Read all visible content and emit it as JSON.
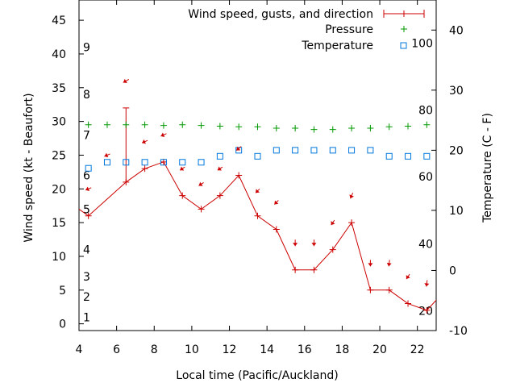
{
  "chart_data": {
    "type": "line",
    "xlabel": "Local time (Pacific/Auckland)",
    "ylabel_left": "Wind speed (kt - Beaufort)",
    "ylabel_right": "Temperature (C - F)",
    "xlim": [
      4,
      23
    ],
    "ylim": [
      -1,
      48
    ],
    "y2lim": [
      -10,
      45
    ],
    "x_ticks": [
      4,
      6,
      8,
      10,
      12,
      14,
      16,
      18,
      20,
      22
    ],
    "y_ticks": [
      0,
      5,
      10,
      15,
      20,
      25,
      30,
      35,
      40,
      45
    ],
    "y2_ticks": [
      -10,
      0,
      10,
      20,
      30,
      40
    ],
    "beaufort_labels": [
      {
        "label": "1",
        "y": 1
      },
      {
        "label": "2",
        "y": 4
      },
      {
        "label": "3",
        "y": 7
      },
      {
        "label": "4",
        "y": 11
      },
      {
        "label": "5",
        "y": 17
      },
      {
        "label": "6",
        "y": 22
      },
      {
        "label": "7",
        "y": 28
      },
      {
        "label": "8",
        "y": 34
      },
      {
        "label": "9",
        "y": 41
      }
    ],
    "fahrenheit_labels": [
      {
        "label": "20",
        "temp_c": -6.7
      },
      {
        "label": "40",
        "temp_c": 4.4
      },
      {
        "label": "60",
        "temp_c": 15.6
      },
      {
        "label": "80",
        "temp_c": 26.7
      },
      {
        "label": "100",
        "temp_c": 37.8
      }
    ],
    "legend": {
      "position": "top-right",
      "entries": [
        "Wind speed, gusts, and direction",
        "Pressure",
        "Temperature"
      ]
    },
    "series": [
      {
        "name": "Wind speed, gusts, and direction",
        "color": "#cc0000",
        "axis": "left",
        "x": [
          3.5,
          4.5,
          6.5,
          7.5,
          8.5,
          9.5,
          10.5,
          11.5,
          12.5,
          13.5,
          14.5,
          15.5,
          16.5,
          17.5,
          18.5,
          19.5,
          20.5,
          21.5,
          22.5,
          23.5
        ],
        "y": [
          18,
          16,
          21,
          23,
          24,
          19,
          17,
          19,
          22,
          16,
          14,
          8,
          8,
          11,
          15,
          5,
          5,
          3,
          2,
          5
        ],
        "gusts": [
          {
            "x": 6.5,
            "y": 32
          }
        ],
        "direction_arrows": [
          {
            "x": 4.5,
            "y": 20,
            "dx": -7,
            "dy": 3
          },
          {
            "x": 5.5,
            "y": 25,
            "dx": -7,
            "dy": 3
          },
          {
            "x": 6.5,
            "y": 36,
            "dx": -7,
            "dy": 4
          },
          {
            "x": 7.5,
            "y": 27,
            "dx": -7,
            "dy": 3
          },
          {
            "x": 8.5,
            "y": 28,
            "dx": -7,
            "dy": 3
          },
          {
            "x": 9.5,
            "y": 23,
            "dx": -6,
            "dy": 4
          },
          {
            "x": 10.5,
            "y": 20.7,
            "dx": -6,
            "dy": 4
          },
          {
            "x": 11.5,
            "y": 23,
            "dx": -6,
            "dy": 4
          },
          {
            "x": 12.5,
            "y": 26,
            "dx": -6,
            "dy": 5
          },
          {
            "x": 13.5,
            "y": 19.7,
            "dx": -5,
            "dy": 5
          },
          {
            "x": 14.5,
            "y": 18,
            "dx": -5,
            "dy": 5
          },
          {
            "x": 15.5,
            "y": 12,
            "dx": 0,
            "dy": 8
          },
          {
            "x": 16.5,
            "y": 12,
            "dx": 0,
            "dy": 8
          },
          {
            "x": 17.5,
            "y": 15,
            "dx": -4,
            "dy": 6
          },
          {
            "x": 18.5,
            "y": 19,
            "dx": -3,
            "dy": 7
          },
          {
            "x": 19.5,
            "y": 9,
            "dx": 0,
            "dy": 8
          },
          {
            "x": 20.5,
            "y": 9,
            "dx": -1,
            "dy": 8
          },
          {
            "x": 21.5,
            "y": 7,
            "dx": -4,
            "dy": 6
          },
          {
            "x": 22.5,
            "y": 6,
            "dx": -1,
            "dy": 8
          }
        ]
      },
      {
        "name": "Pressure",
        "color": "#009900",
        "axis": "left",
        "x": [
          4.5,
          5.5,
          6.5,
          7.5,
          8.5,
          9.5,
          10.5,
          11.5,
          12.5,
          13.5,
          14.5,
          15.5,
          16.5,
          17.5,
          18.5,
          19.5,
          20.5,
          21.5,
          22.5
        ],
        "y": [
          29.5,
          29.5,
          29.5,
          29.5,
          29.4,
          29.5,
          29.4,
          29.3,
          29.2,
          29.2,
          29.0,
          29.0,
          28.8,
          28.8,
          29.0,
          29.0,
          29.2,
          29.3,
          29.5
        ]
      },
      {
        "name": "Temperature",
        "color": "#0077dd",
        "axis": "right",
        "x": [
          4.5,
          5.5,
          6.5,
          7.5,
          8.5,
          9.5,
          10.5,
          11.5,
          12.5,
          13.5,
          14.5,
          15.5,
          16.5,
          17.5,
          18.5,
          19.5,
          20.5,
          21.5,
          22.5
        ],
        "y": [
          17,
          18,
          18,
          18,
          18,
          18,
          18,
          19,
          20,
          19,
          20,
          20,
          20,
          20,
          20,
          20,
          19,
          19,
          19
        ]
      }
    ]
  }
}
